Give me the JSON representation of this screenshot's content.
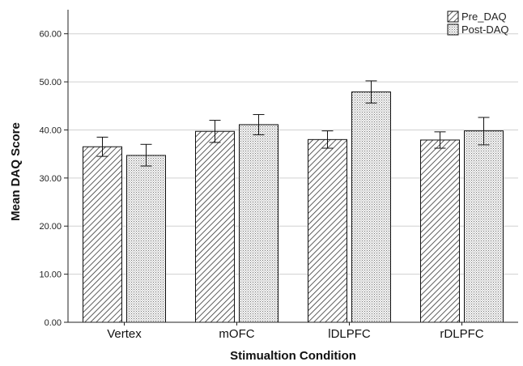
{
  "chart_data": {
    "type": "bar",
    "xlabel": "Stimualtion Condition",
    "ylabel": "Mean DAQ Score",
    "ylim": [
      0,
      65
    ],
    "yticks": [
      "0.00",
      "10.00",
      "20.00",
      "30.00",
      "40.00",
      "50.00",
      "60.00"
    ],
    "grid": true,
    "legend_position": "top-right",
    "categories": [
      "Vertex",
      "mOFC",
      "lDLPFC",
      "rDLPFC"
    ],
    "series": [
      {
        "name": "Pre_DAQ",
        "pattern": "diagonal-hatch",
        "values": [
          36.5,
          39.7,
          38.0,
          37.9
        ],
        "error_low": [
          34.5,
          37.4,
          36.2,
          36.2
        ],
        "error_high": [
          38.5,
          42.0,
          39.8,
          39.6
        ]
      },
      {
        "name": "Post-DAQ",
        "pattern": "dotted",
        "values": [
          34.7,
          41.1,
          47.9,
          39.8
        ],
        "error_low": [
          32.5,
          39.0,
          45.6,
          36.9
        ],
        "error_high": [
          37.0,
          43.2,
          50.2,
          42.6
        ]
      }
    ],
    "colors": {
      "axis": "#222222",
      "grid": "#d0d0d0",
      "bar_fill": "#ffffff"
    }
  }
}
